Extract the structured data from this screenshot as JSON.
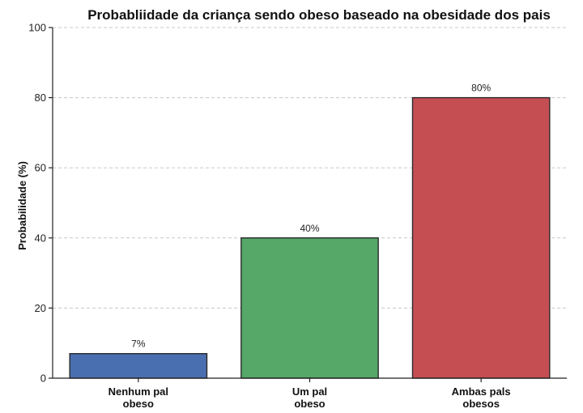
{
  "chart_data": {
    "type": "bar",
    "title": "Probabliidade da criança sendo obeso baseado na obesidade dos pais",
    "xlabel": "",
    "ylabel": "Probabilidade (%)",
    "ylim": [
      0,
      100
    ],
    "yticks": [
      "0",
      "20",
      "40",
      "60",
      "80",
      "100"
    ],
    "grid": true,
    "categories": [
      [
        "Nenhum pal",
        "obeso"
      ],
      [
        "Um pal",
        "obeso"
      ],
      [
        "Ambas pals",
        "obesos"
      ]
    ],
    "values": [
      7,
      40,
      80
    ],
    "data_labels": [
      "7%",
      "40%",
      "80%"
    ],
    "colors": [
      "#4a6fb0",
      "#55a868",
      "#c44e52"
    ]
  }
}
